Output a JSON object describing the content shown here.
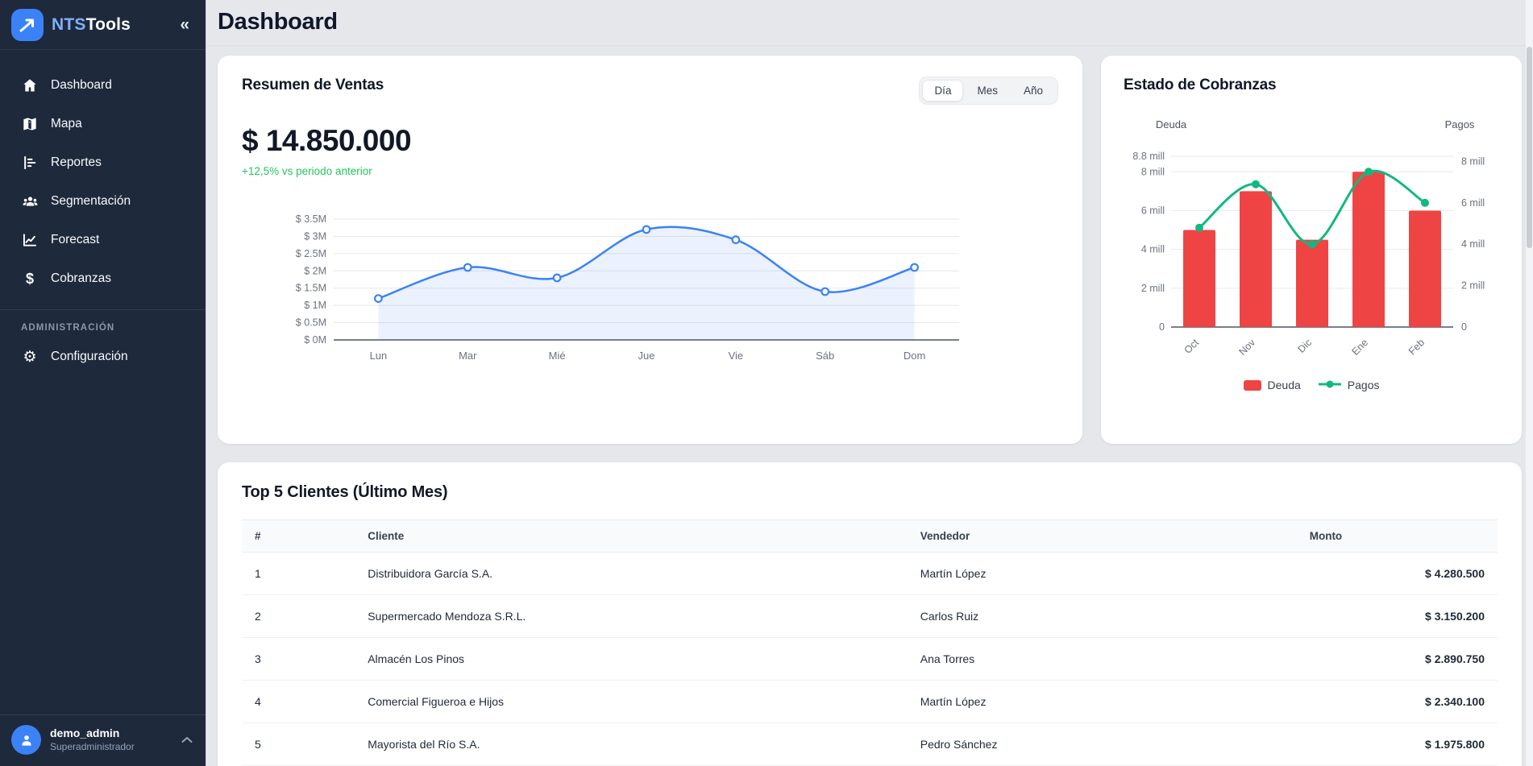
{
  "sidebar": {
    "brand": {
      "primary": "NTS",
      "secondary": "Tools"
    },
    "collapse_icon": "«",
    "items": [
      {
        "label": "Dashboard"
      },
      {
        "label": "Mapa"
      },
      {
        "label": "Reportes"
      },
      {
        "label": "Segmentación"
      },
      {
        "label": "Forecast"
      },
      {
        "label": "Cobranzas"
      }
    ],
    "section_label": "ADMINISTRACIÓN",
    "admin_items": [
      {
        "label": "Configuración"
      }
    ],
    "user": {
      "name": "demo_admin",
      "role": "Superadministrador"
    }
  },
  "header": {
    "title": "Dashboard"
  },
  "sales_card": {
    "title": "Resumen de Ventas",
    "toggle": {
      "options": [
        "Día",
        "Mes",
        "Año"
      ],
      "active": "Día"
    },
    "total": "$ 14.850.000",
    "delta": "+12,5% vs periodo anterior"
  },
  "cobranzas_card": {
    "title": "Estado de Cobranzas",
    "legend": [
      "Deuda",
      "Pagos"
    ]
  },
  "table_card": {
    "title": "Top 5 Clientes (Último Mes)",
    "columns": [
      "#",
      "Cliente",
      "Vendedor",
      "Monto"
    ],
    "rows": [
      {
        "num": "1",
        "cliente": "Distribuidora García S.A.",
        "vendedor": "Martín López",
        "monto": "$ 4.280.500"
      },
      {
        "num": "2",
        "cliente": "Supermercado Mendoza S.R.L.",
        "vendedor": "Carlos Ruiz",
        "monto": "$ 3.150.200"
      },
      {
        "num": "3",
        "cliente": "Almacén Los Pinos",
        "vendedor": "Ana Torres",
        "monto": "$ 2.890.750"
      },
      {
        "num": "4",
        "cliente": "Comercial Figueroa e Hijos",
        "vendedor": "Martín López",
        "monto": "$ 2.340.100"
      },
      {
        "num": "5",
        "cliente": "Mayorista del Río S.A.",
        "vendedor": "Pedro Sánchez",
        "monto": "$ 1.975.800"
      }
    ]
  },
  "colors": {
    "accent_blue": "#3b82f6",
    "deuda_red": "#ef4444",
    "pagos_green": "#10b981",
    "delta_green": "#22c55e",
    "sidebar_bg": "#1e293b"
  },
  "chart_data": [
    {
      "type": "line",
      "title": "Resumen de Ventas",
      "x": [
        "Lun",
        "Mar",
        "Mié",
        "Jue",
        "Vie",
        "Sáb",
        "Dom"
      ],
      "series": [
        {
          "name": "Ventas",
          "values": [
            1200000,
            2100000,
            1800000,
            3200000,
            2900000,
            1400000,
            2100000
          ]
        }
      ],
      "ylim": [
        0,
        3500000
      ],
      "ytick_labels": [
        "$ 0M",
        "$ 0.5M",
        "$ 1M",
        "$ 1.5M",
        "$ 2M",
        "$ 2.5M",
        "$ 3M",
        "$ 3.5M"
      ],
      "grid": true,
      "legend": false,
      "line_color": "#3b82f6",
      "area_fill": true
    },
    {
      "type": "bar+line",
      "title": "Estado de Cobranzas",
      "categories": [
        "Oct",
        "Nov",
        "Dic",
        "Ene",
        "Feb"
      ],
      "series": [
        {
          "name": "Deuda",
          "type": "bar",
          "axis": "left",
          "color": "#ef4444",
          "values": [
            5000000,
            7000000,
            4500000,
            8000000,
            6000000
          ]
        },
        {
          "name": "Pagos",
          "type": "line",
          "axis": "right",
          "color": "#10b981",
          "values": [
            4800000,
            6900000,
            4000000,
            7500000,
            6000000
          ]
        }
      ],
      "left_axis": {
        "label": "Deuda",
        "max": 8800000,
        "ticks": [
          0,
          2000000,
          4000000,
          6000000,
          8000000,
          8800000
        ],
        "tick_labels": [
          "0",
          "2 mill",
          "4 mill",
          "6 mill",
          "8 mill",
          "8.8 mill"
        ]
      },
      "right_axis": {
        "label": "Pagos",
        "max": 8250000,
        "ticks": [
          0,
          2000000,
          4000000,
          6000000,
          8000000
        ],
        "tick_labels": [
          "0",
          "2 mill",
          "4 mill",
          "6 mill",
          "8 mill"
        ]
      },
      "legend_position": "bottom",
      "grid": true
    }
  ]
}
